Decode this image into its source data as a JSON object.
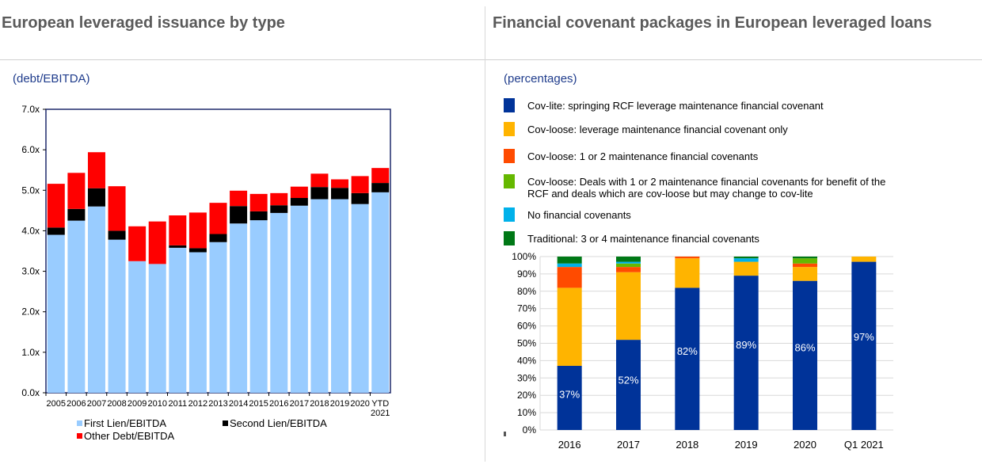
{
  "left_panel": {
    "title": "European leveraged issuance by type",
    "subtitle": "(debt/EBITDA)"
  },
  "right_panel": {
    "title": "Financial covenant packages in European leveraged loans",
    "subtitle": "(percentages)"
  },
  "chart_data": [
    {
      "type": "bar",
      "stacked": true,
      "title": "European leveraged issuance by type",
      "unit": "(debt/EBITDA)",
      "categories": [
        "2005",
        "2006",
        "2007",
        "2008",
        "2009",
        "2010",
        "2011",
        "2012",
        "2013",
        "2014",
        "2015",
        "2016",
        "2017",
        "2018",
        "2019",
        "2020",
        "YTD 2021"
      ],
      "category_lines": [
        [
          "2005"
        ],
        [
          "2006"
        ],
        [
          "2007"
        ],
        [
          "2008"
        ],
        [
          "2009"
        ],
        [
          "2010"
        ],
        [
          "2011"
        ],
        [
          "2012"
        ],
        [
          "2013"
        ],
        [
          "2014"
        ],
        [
          "2015"
        ],
        [
          "2016"
        ],
        [
          "2017"
        ],
        [
          "2018"
        ],
        [
          "2019"
        ],
        [
          "2020"
        ],
        [
          "YTD",
          "2021"
        ]
      ],
      "ylim": [
        0,
        7
      ],
      "yticks": [
        0,
        1,
        2,
        3,
        4,
        5,
        6,
        7
      ],
      "ytick_labels": [
        "0.0x",
        "1.0x",
        "2.0x",
        "3.0x",
        "4.0x",
        "5.0x",
        "6.0x",
        "7.0x"
      ],
      "series": [
        {
          "name": "First Lien/EBITDA",
          "color": "#99ccff",
          "values": [
            3.9,
            4.25,
            4.6,
            3.78,
            3.25,
            3.18,
            3.58,
            3.47,
            3.72,
            4.18,
            4.26,
            4.44,
            4.62,
            4.78,
            4.78,
            4.66,
            4.95
          ]
        },
        {
          "name": "Second Lien/EBITDA",
          "color": "#000000",
          "values": [
            0.18,
            0.29,
            0.45,
            0.22,
            0.0,
            0.0,
            0.06,
            0.1,
            0.2,
            0.43,
            0.22,
            0.19,
            0.19,
            0.3,
            0.28,
            0.27,
            0.23
          ]
        },
        {
          "name": "Other Debt/EBITDA",
          "color": "#ff0000",
          "values": [
            1.08,
            0.89,
            0.89,
            1.1,
            0.86,
            1.05,
            0.74,
            0.88,
            0.77,
            0.38,
            0.43,
            0.3,
            0.28,
            0.33,
            0.21,
            0.42,
            0.37
          ]
        }
      ],
      "legend": "bottom",
      "grid": false
    },
    {
      "type": "bar",
      "stacked": true,
      "percent": true,
      "title": "Financial covenant packages in European leveraged loans",
      "unit": "(percentages)",
      "categories": [
        "2016",
        "2017",
        "2018",
        "2019",
        "2020",
        "Q1 2021"
      ],
      "ylim": [
        0,
        100
      ],
      "yticks": [
        0,
        10,
        20,
        30,
        40,
        50,
        60,
        70,
        80,
        90,
        100
      ],
      "ytick_labels": [
        "0%",
        "10%",
        "20%",
        "30%",
        "40%",
        "50%",
        "60%",
        "70%",
        "80%",
        "90%",
        "100%"
      ],
      "grid": true,
      "legend": "top",
      "data_labels": [
        "37%",
        "52%",
        "82%",
        "89%",
        "86%",
        "97%"
      ],
      "series": [
        {
          "name": "Cov-lite: springing RCF leverage maintenance financial covenant",
          "color": "#003399",
          "values": [
            37,
            52,
            82,
            89,
            86,
            97
          ]
        },
        {
          "name": "Cov-loose: leverage maintenance financial covenant only",
          "color": "#ffb400",
          "values": [
            45,
            39,
            17,
            8,
            8,
            3
          ]
        },
        {
          "name": "Cov-loose: 1 or 2 maintenance financial covenants",
          "color": "#ff4b00",
          "values": [
            12,
            3,
            1,
            0,
            2,
            0
          ]
        },
        {
          "name": "Cov-loose: Deals with 1 or 2 maintenance financial covenants for benefit of the RCF and deals which are cov-loose but may change to cov-lite",
          "color": "#65b800",
          "values": [
            0,
            2,
            0,
            0,
            3,
            0
          ]
        },
        {
          "name": "No financial covenants",
          "color": "#00b1ea",
          "values": [
            2,
            1,
            0,
            2,
            0,
            0
          ]
        },
        {
          "name": "Traditional: 3 or 4 maintenance financial covenants",
          "color": "#007816",
          "values": [
            4,
            3,
            0,
            1,
            1,
            0
          ]
        }
      ]
    }
  ]
}
